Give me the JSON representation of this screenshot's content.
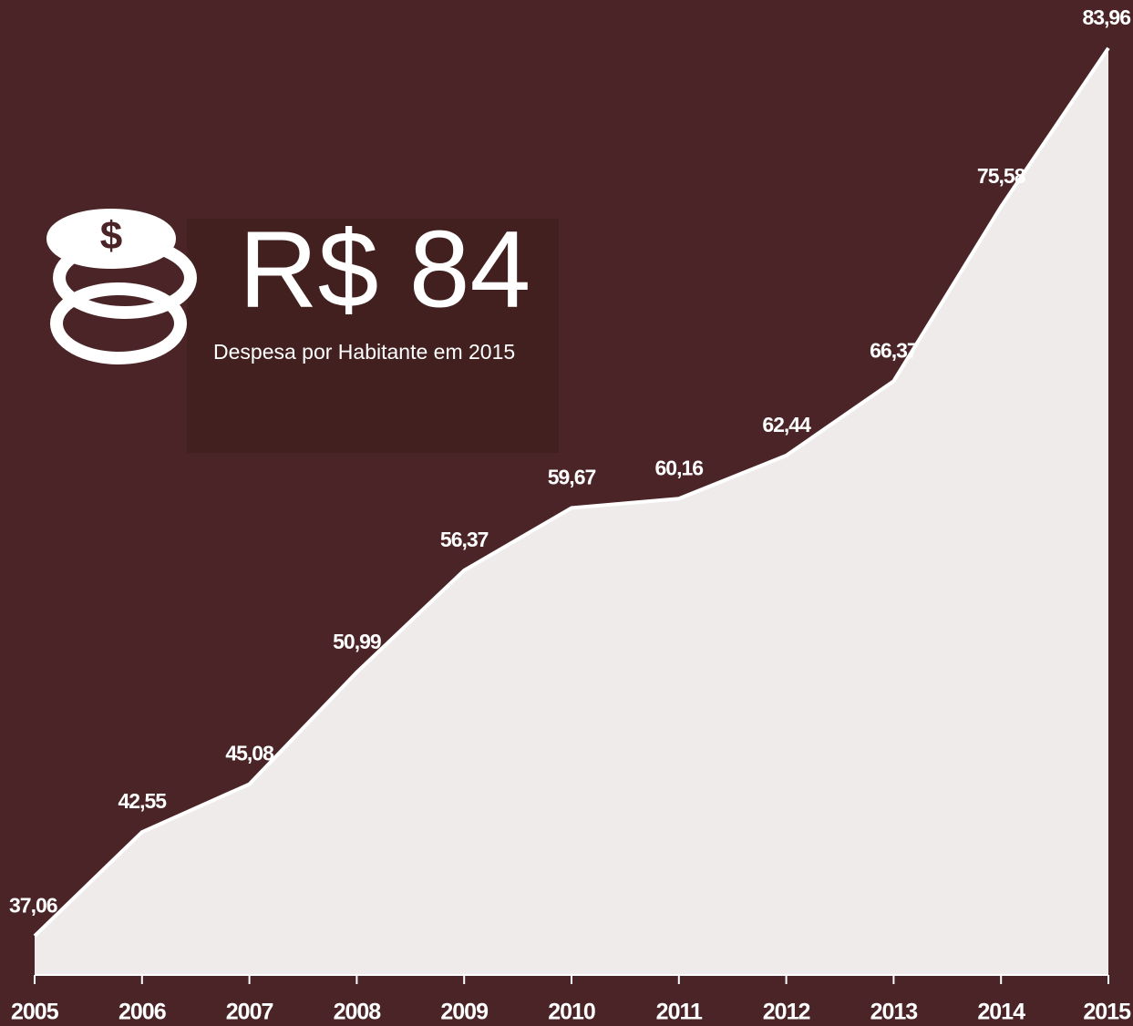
{
  "chart_data": {
    "type": "area",
    "categories": [
      "2005",
      "2006",
      "2007",
      "2008",
      "2009",
      "2010",
      "2011",
      "2012",
      "2013",
      "2014",
      "2015"
    ],
    "values": [
      37.06,
      42.55,
      45.08,
      50.99,
      56.37,
      59.67,
      60.16,
      62.44,
      66.37,
      75.58,
      83.96
    ],
    "value_labels": [
      "37,06",
      "42,55",
      "45,08",
      "50,99",
      "56,37",
      "59,67",
      "60,16",
      "62,44",
      "66,37",
      "75,58",
      "83,96"
    ],
    "color": "#efebeb",
    "line_color": "#ffffff",
    "ylim": [
      35,
      86.5
    ],
    "annotations": {
      "highlight": "R$ 84",
      "caption": "Despesa por Habitante em 2015"
    }
  }
}
